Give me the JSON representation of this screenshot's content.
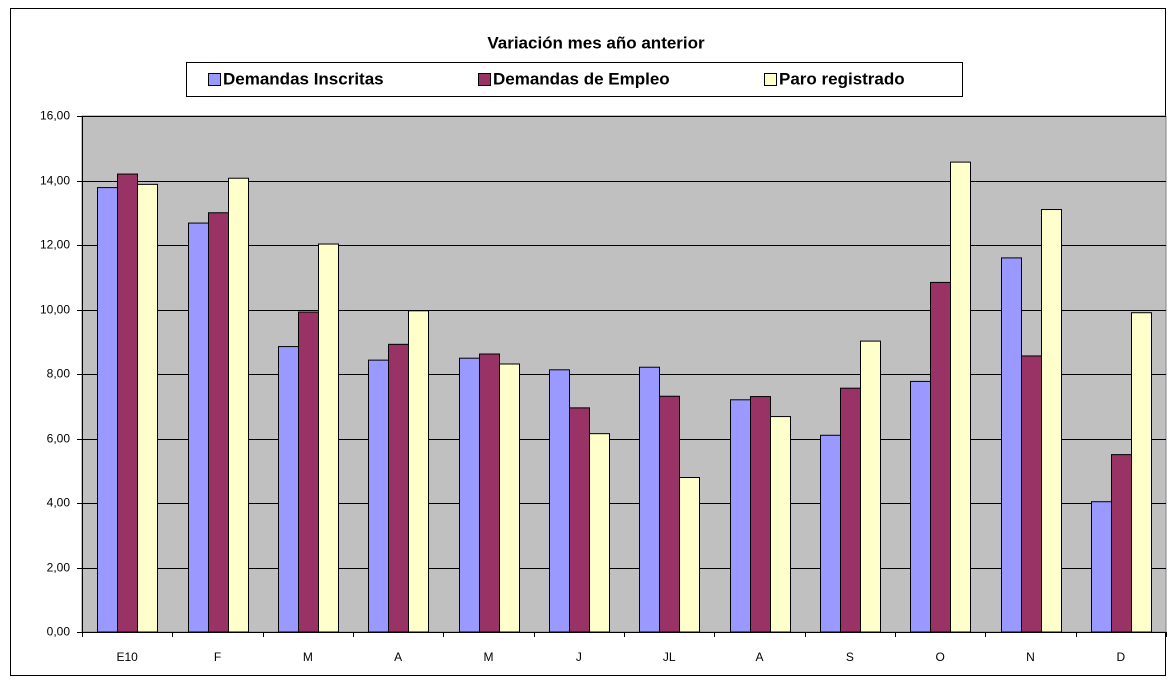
{
  "chart_data": {
    "type": "bar",
    "title": "Variación mes año anterior",
    "categories": [
      "E10",
      "F",
      "M",
      "A",
      "M",
      "J",
      "JL",
      "A",
      "S",
      "O",
      "N",
      "D"
    ],
    "series": [
      {
        "name": "Demandas Inscritas",
        "color": "#9999ff",
        "values": [
          13.78,
          12.68,
          8.85,
          8.43,
          8.49,
          8.13,
          8.21,
          7.2,
          6.1,
          7.77,
          11.6,
          4.04
        ]
      },
      {
        "name": "Demandas de Empleo",
        "color": "#993366",
        "values": [
          14.2,
          13.0,
          9.92,
          8.92,
          8.62,
          6.95,
          7.31,
          7.3,
          7.56,
          10.84,
          8.56,
          5.5
        ]
      },
      {
        "name": "Paro registrado",
        "color": "#ffffcc",
        "values": [
          13.88,
          14.07,
          12.03,
          9.96,
          8.31,
          6.15,
          4.79,
          6.68,
          9.02,
          14.57,
          13.1,
          9.9
        ]
      }
    ],
    "ylim": [
      0,
      16
    ],
    "yticks": [
      {
        "value": 0,
        "label": "0,00"
      },
      {
        "value": 2,
        "label": "2,00"
      },
      {
        "value": 4,
        "label": "4,00"
      },
      {
        "value": 6,
        "label": "6,00"
      },
      {
        "value": 8,
        "label": "8,00"
      },
      {
        "value": 10,
        "label": "10,00"
      },
      {
        "value": 12,
        "label": "12,00"
      },
      {
        "value": 14,
        "label": "14,00"
      },
      {
        "value": 16,
        "label": "16,00"
      }
    ],
    "grid": true,
    "plot_background": "#c0c0c0",
    "legend": "top"
  }
}
